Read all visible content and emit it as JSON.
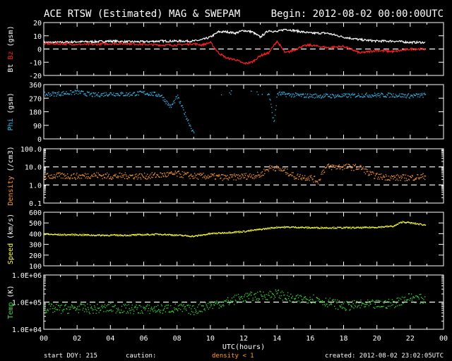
{
  "header": {
    "title": "ACE RTSW (Estimated) MAG & SWEPAM",
    "begin": "Begin: 2012-08-02 00:00:00UTC"
  },
  "footer": {
    "start_doy": "start DOY: 215",
    "caution": "caution:",
    "density_note": "density < 1",
    "created": "created: 2012-08-02 23:02:05UTC",
    "xlabel": "UTC(hours)"
  },
  "colors": {
    "bt": "#ffffff",
    "bz": "#ff2020",
    "phi": "#33bbee",
    "density": "#ff9933",
    "speed": "#ffff33",
    "temp": "#33dd33",
    "frame": "#ffffff",
    "background": "#000000"
  },
  "chart_data": [
    {
      "type": "line",
      "panel": "mag_field",
      "ylabel": [
        "Bt",
        "Bz",
        "(gsm)"
      ],
      "ylim": [
        -20,
        20
      ],
      "yticks": [
        "20",
        "10",
        "0",
        "-10",
        "-20"
      ],
      "dashed_at": [
        0
      ],
      "x": [
        0,
        1,
        2,
        3,
        4,
        5,
        6,
        7,
        8,
        9,
        9.5,
        10,
        10.5,
        11,
        11.5,
        12,
        12.5,
        13,
        13.5,
        14,
        14.5,
        15,
        15.5,
        16,
        17,
        18,
        19,
        20,
        21,
        22,
        22.9
      ],
      "series": [
        {
          "name": "Bt",
          "values": [
            5,
            5,
            5.5,
            5.5,
            6,
            5.5,
            5.5,
            6,
            6,
            6,
            7,
            9,
            13,
            13,
            12,
            14,
            13,
            9,
            14,
            13,
            15,
            14,
            13,
            12,
            12,
            9,
            7,
            6,
            6,
            5,
            5
          ]
        },
        {
          "name": "Bz",
          "values": [
            4,
            4,
            3.5,
            3.5,
            4,
            4,
            3.5,
            3,
            3,
            4,
            3,
            5,
            -3,
            -7,
            -8,
            -11,
            -10,
            -5,
            -3,
            6,
            -3,
            -1,
            2,
            3,
            1,
            2,
            -3,
            -1,
            -2,
            0,
            0
          ]
        }
      ],
      "xlim": [
        0,
        24
      ]
    },
    {
      "type": "scatter",
      "panel": "phi",
      "ylabel": [
        "Phi",
        "(gsm)"
      ],
      "ylim": [
        0,
        360
      ],
      "yticks": [
        "360",
        "270",
        "180",
        "90",
        "0"
      ],
      "x": [
        0,
        1,
        2,
        3,
        4,
        5,
        6,
        7,
        7.6,
        8,
        9,
        9.3,
        10,
        11,
        12,
        13,
        13.5,
        13.8,
        14,
        15,
        16,
        17,
        18,
        19,
        20,
        21,
        22,
        22.9
      ],
      "series": [
        {
          "name": "Phi",
          "values": [
            295,
            300,
            310,
            290,
            300,
            295,
            305,
            290,
            210,
            280,
            30,
            5,
            300,
            305,
            320,
            295,
            300,
            100,
            300,
            290,
            285,
            285,
            285,
            290,
            290,
            290,
            285,
            290
          ]
        }
      ],
      "xlim": [
        0,
        24
      ]
    },
    {
      "type": "scatter",
      "panel": "density",
      "ylabel": [
        "Density",
        "(/cm3)"
      ],
      "ylim": [
        0.1,
        100
      ],
      "log": true,
      "yticks": [
        "100.0",
        "10.0",
        "1.0",
        "0.1"
      ],
      "dashed_at": [
        1,
        10
      ],
      "x": [
        0,
        1,
        2,
        3,
        4,
        5,
        6,
        7,
        8,
        9,
        10,
        11,
        12,
        13,
        13.7,
        14,
        15,
        16,
        16.5,
        17,
        18,
        19,
        19.5,
        20,
        21,
        22,
        22.9
      ],
      "series": [
        {
          "name": "Density",
          "values": [
            3,
            3.2,
            3,
            3.5,
            3,
            3.2,
            3,
            3.5,
            4,
            3,
            3,
            2.5,
            3,
            3.5,
            10,
            8,
            3,
            2.5,
            1.5,
            10,
            10,
            9,
            4,
            3,
            2.5,
            2.5,
            3
          ]
        }
      ],
      "xlim": [
        0,
        24
      ]
    },
    {
      "type": "scatter",
      "panel": "speed",
      "ylabel": [
        "Speed",
        "(km/s)"
      ],
      "ylim": [
        100,
        600
      ],
      "yticks": [
        "600",
        "500",
        "400",
        "300",
        "200",
        "100"
      ],
      "x": [
        0,
        1,
        2,
        3,
        4,
        5,
        6,
        7,
        8,
        9,
        10,
        11,
        12,
        13,
        14,
        15,
        16,
        17,
        18,
        19,
        20,
        21,
        21.5,
        22,
        22.9
      ],
      "series": [
        {
          "name": "Speed",
          "values": [
            395,
            390,
            390,
            385,
            385,
            385,
            390,
            395,
            385,
            375,
            400,
            410,
            420,
            440,
            460,
            460,
            455,
            455,
            455,
            455,
            460,
            470,
            510,
            500,
            480
          ]
        }
      ],
      "xlim": [
        0,
        24
      ]
    },
    {
      "type": "scatter",
      "panel": "temp",
      "ylabel": [
        "Temp",
        "(K)"
      ],
      "ylim": [
        10000,
        1000000
      ],
      "log": true,
      "yticks": [
        "1.0E+06",
        "1.0E+05",
        "1.0E+04"
      ],
      "dashed_at": [
        100000
      ],
      "x": [
        0,
        1,
        2,
        3,
        4,
        5,
        6,
        7,
        8,
        9,
        10,
        11,
        12,
        13,
        14,
        15,
        16,
        17,
        18,
        19,
        20,
        21,
        22,
        22.9
      ],
      "series": [
        {
          "name": "Temp",
          "values": [
            60000,
            55000,
            60000,
            55000,
            60000,
            55000,
            55000,
            55000,
            60000,
            50000,
            80000,
            100000,
            150000,
            170000,
            200000,
            120000,
            140000,
            100000,
            70000,
            80000,
            80000,
            90000,
            150000,
            120000
          ]
        }
      ],
      "xlim": [
        0,
        24
      ],
      "xticks": [
        "00",
        "02",
        "04",
        "06",
        "08",
        "10",
        "12",
        "14",
        "16",
        "18",
        "20",
        "22",
        "00"
      ]
    }
  ]
}
